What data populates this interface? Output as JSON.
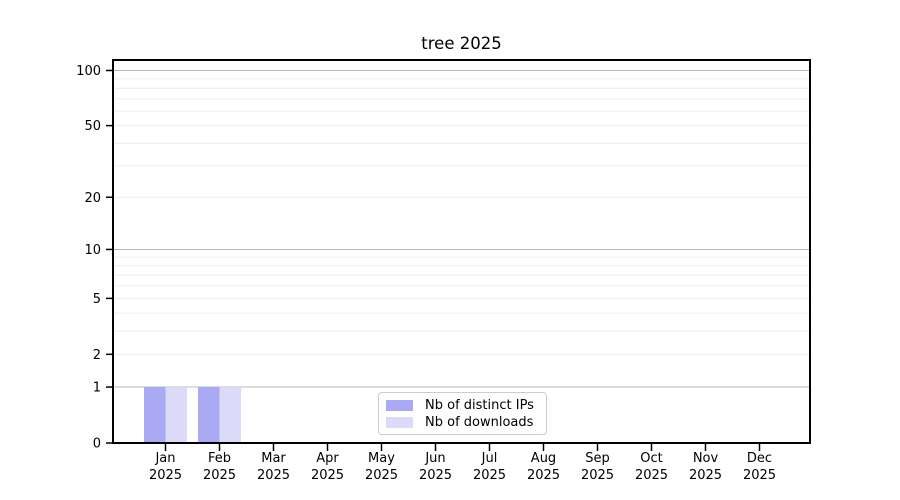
{
  "chart_data": {
    "type": "bar",
    "title": "tree 2025",
    "categories": [
      "Jan",
      "Feb",
      "Mar",
      "Apr",
      "May",
      "Jun",
      "Jul",
      "Aug",
      "Sep",
      "Oct",
      "Nov",
      "Dec"
    ],
    "year": "2025",
    "series": [
      {
        "name": "Nb of distinct IPs",
        "color": "#a9a9f4",
        "values": [
          1,
          1,
          0,
          0,
          0,
          0,
          0,
          0,
          0,
          0,
          0,
          0
        ]
      },
      {
        "name": "Nb of downloads",
        "color": "#dbdbf9",
        "values": [
          1,
          1,
          0,
          0,
          0,
          0,
          0,
          0,
          0,
          0,
          0,
          0
        ]
      }
    ],
    "xlabel": "",
    "ylabel": "",
    "y_ticks": [
      0,
      1,
      2,
      5,
      10,
      20,
      50,
      100
    ],
    "y_scale": "log10(value+1)",
    "ylim": [
      0,
      114
    ],
    "grid": true,
    "gridlines_major": [
      1,
      10,
      100
    ],
    "gridlines_minor": [
      2,
      3,
      4,
      5,
      6,
      7,
      8,
      9,
      20,
      30,
      40,
      50,
      60,
      70,
      80,
      90
    ],
    "legend_position": "inside lower center",
    "colors": {
      "grid_major": "#b9b9b9",
      "grid_minor": "#ececec",
      "spine": "#000000",
      "background": "#ffffff"
    }
  }
}
